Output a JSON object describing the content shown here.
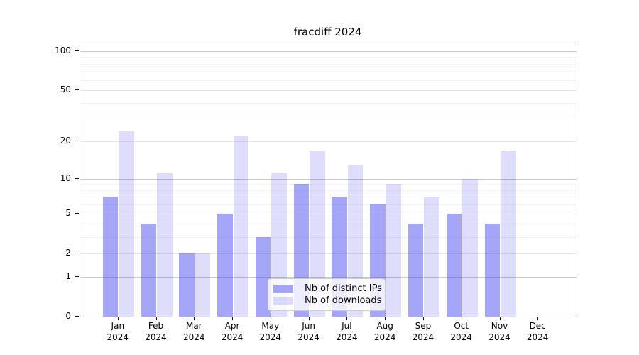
{
  "title": "fracdiff 2024",
  "colors": {
    "bar_distinct_ips": "rgba(70,70,240,0.48)",
    "bar_downloads": "rgba(70,70,240,0.18)",
    "grid_major": "#c9c9c9",
    "grid_mid": "#e6e6e6",
    "grid_minor": "#f2f2f2",
    "axis": "#141414"
  },
  "legend": {
    "items": [
      {
        "label": "Nb of distinct IPs",
        "color": "rgba(70,70,240,0.48)"
      },
      {
        "label": "Nb of downloads",
        "color": "rgba(70,70,240,0.18)"
      }
    ]
  },
  "chart_data": {
    "type": "bar",
    "title": "fracdiff 2024",
    "categories": [
      "Jan 2024",
      "Feb 2024",
      "Mar 2024",
      "Apr 2024",
      "May 2024",
      "Jun 2024",
      "Jul 2024",
      "Aug 2024",
      "Sep 2024",
      "Oct 2024",
      "Nov 2024",
      "Dec 2024"
    ],
    "series": [
      {
        "name": "Nb of distinct IPs",
        "values": [
          7,
          4,
          2,
          5,
          3,
          9,
          7,
          6,
          4,
          5,
          4,
          0
        ]
      },
      {
        "name": "Nb of downloads",
        "values": [
          24,
          11,
          2,
          22,
          11,
          17,
          13,
          9,
          7,
          10,
          17,
          0
        ]
      }
    ],
    "yscale": "log1p",
    "y_ticks": [
      0,
      1,
      2,
      5,
      10,
      20,
      50,
      100
    ],
    "y_decade_ticks": [
      1,
      10,
      100
    ],
    "y_minor_gridlines": [
      3,
      4,
      6,
      7,
      8,
      9,
      30,
      40,
      60,
      70,
      80,
      90
    ],
    "ylim": [
      0,
      110
    ],
    "xlabel": "",
    "ylabel": "",
    "grid": "on",
    "legend_position": "lower center"
  }
}
